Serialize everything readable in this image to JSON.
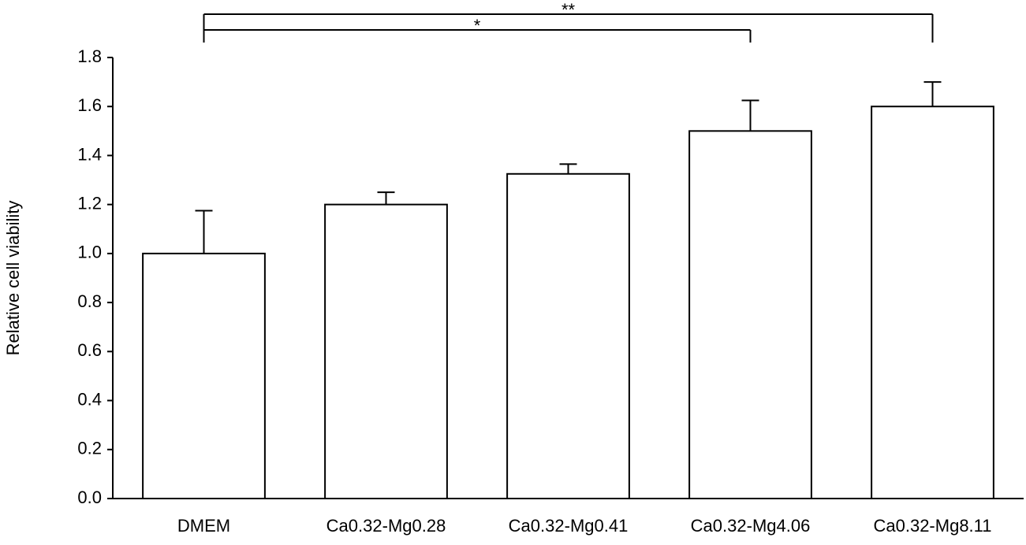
{
  "chart_data": {
    "type": "bar",
    "y_label": "Relative cell viability",
    "categories": [
      "DMEM",
      "Ca0.32-Mg0.28",
      "Ca0.32-Mg0.41",
      "Ca0.32-Mg4.06",
      "Ca0.32-Mg8.11"
    ],
    "values": [
      1.0,
      1.2,
      1.325,
      1.5,
      1.6
    ],
    "errors": [
      0.175,
      0.05,
      0.04,
      0.125,
      0.1
    ],
    "color": "#ffffff",
    "ylim": [
      0,
      1.8
    ],
    "yticks": [
      {
        "value": 0,
        "label": "0.0"
      },
      {
        "value": 0.2,
        "label": "0.2"
      },
      {
        "value": 0.4,
        "label": "0.4"
      },
      {
        "value": 0.6,
        "label": "0.6"
      },
      {
        "value": 0.8,
        "label": "0.8"
      },
      {
        "value": 1,
        "label": "1.0"
      },
      {
        "value": 1.2,
        "label": "1.2"
      },
      {
        "value": 1.4,
        "label": "1.4"
      },
      {
        "value": 1.6,
        "label": "1.6"
      },
      {
        "value": 1.8,
        "label": "1.8"
      }
    ],
    "grid": false,
    "significance": [
      {
        "text": "**",
        "from": 0,
        "to": 4
      },
      {
        "text": "*",
        "from": 0,
        "to": 3
      }
    ]
  }
}
